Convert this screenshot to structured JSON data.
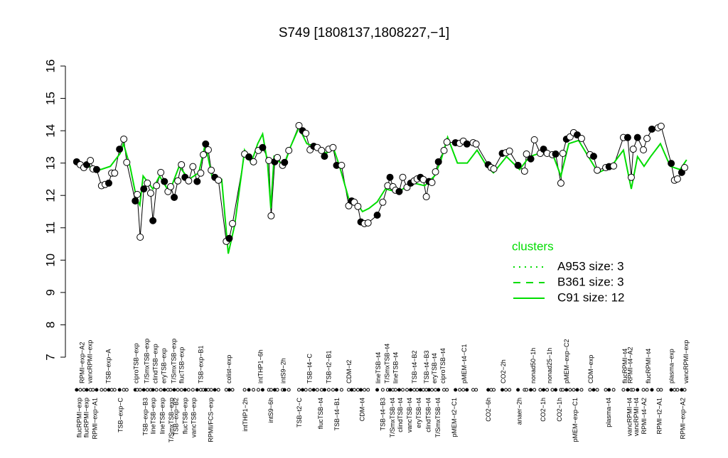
{
  "chart_data": {
    "type": "line",
    "title": "S749 [1808137,1808227,−1]",
    "xlim": [
      0,
      190
    ],
    "ylim": [
      7,
      16
    ],
    "yticks": [
      7,
      8,
      9,
      10,
      11,
      12,
      13,
      14,
      15,
      16
    ],
    "series": [
      {
        "color": "#000000",
        "x": [
          1.7,
          2.8,
          3.9,
          4.8,
          5.9,
          6.7,
          7.8,
          9.3,
          10.4,
          11.5,
          12.4,
          13.3,
          14.8,
          16.1,
          17,
          19.6,
          20.2,
          21.1,
          22.2,
          23.3,
          24.3,
          25,
          26.1,
          27.4,
          28.5,
          29.6,
          30.4,
          31.5,
          32.6,
          33.7,
          34.8,
          35.9,
          37.2,
          38.5,
          39.6,
          40.4,
          41.1,
          41.9,
          42.8,
          43.9,
          45,
          47.4,
          48.3,
          49.3,
          53,
          54.3,
          55.7,
          57.2,
          58.5,
          60.4,
          61.1,
          62.2,
          63,
          64.6,
          65.2,
          66.5,
          69.6,
          70.7,
          71.7,
          73,
          74.1,
          75.2,
          76.5,
          77.4,
          78.7,
          80,
          81.1,
          82.6,
          84.8,
          85.7,
          86.5,
          87.6,
          88.5,
          89.6,
          90.7,
          93.5,
          95.2,
          96.7,
          97.4,
          98.3,
          99.1,
          100.2,
          101.3,
          102.6,
          103.7,
          104.8,
          105.7,
          106.7,
          107.6,
          108.5,
          109.3,
          110.2,
          111.3,
          112.2,
          113.9,
          114.8,
          117.4,
          118.7,
          119.8,
          120.9,
          122.8,
          123.7,
          127.4,
          128.3,
          129.1,
          131.7,
          132.8,
          133.9,
          136.5,
          138.5,
          139.1,
          140.4,
          141.5,
          143.3,
          144.3,
          145.4,
          147,
          148,
          149.6,
          150.2,
          151.3,
          152.4,
          153.5,
          154.6,
          155.9,
          158.5,
          159.6,
          160.7,
          163.3,
          164.3,
          165.7,
          168.7,
          170,
          171.1,
          171.7,
          173,
          174.8,
          175.9,
          177.4,
          179.3,
          180.2,
          183.3,
          184.3,
          185.2,
          186.5,
          187.4
        ],
        "values": [
          13.04,
          12.95,
          12.86,
          12.95,
          13.08,
          12.82,
          12.8,
          12.3,
          12.34,
          12.38,
          12.69,
          12.69,
          13.43,
          13.74,
          13.02,
          11.83,
          12.03,
          10.71,
          12.2,
          12.38,
          12.07,
          11.22,
          12.3,
          12.71,
          12.43,
          12.12,
          12.27,
          11.94,
          12.45,
          12.95,
          12.56,
          12.45,
          12.89,
          12.43,
          12.69,
          13.26,
          13.59,
          13.41,
          12.78,
          12.56,
          12.47,
          10.58,
          10.67,
          11.13,
          13.28,
          13.19,
          13.04,
          13.39,
          13.48,
          13.08,
          11.37,
          13.04,
          13.17,
          12.93,
          13.02,
          13.39,
          14.16,
          14.0,
          13.92,
          13.41,
          13.52,
          13.48,
          13.39,
          13.21,
          13.43,
          13.48,
          12.93,
          12.93,
          11.68,
          11.83,
          11.79,
          11.66,
          11.18,
          11.13,
          11.15,
          11.39,
          11.79,
          12.3,
          12.56,
          12.27,
          12.16,
          12.12,
          12.56,
          12.25,
          12.38,
          12.45,
          12.51,
          12.56,
          12.49,
          11.96,
          12.43,
          12.4,
          12.73,
          13.04,
          13.39,
          13.65,
          13.63,
          13.61,
          13.68,
          13.59,
          13.63,
          13.59,
          12.95,
          12.86,
          12.82,
          13.3,
          13.32,
          13.37,
          12.93,
          12.75,
          13.28,
          13.13,
          13.72,
          13.3,
          13.43,
          13.3,
          13.26,
          13.28,
          12.38,
          13.3,
          13.74,
          13.81,
          13.94,
          13.87,
          13.76,
          13.26,
          13.21,
          12.78,
          12.86,
          12.89,
          12.91,
          13.79,
          13.79,
          12.56,
          13.43,
          13.79,
          13.41,
          13.76,
          14.05,
          14.09,
          14.14,
          12.99,
          12.47,
          12.51,
          12.71,
          12.86
        ]
      },
      {
        "color": "#00dd00",
        "x": [
          1.7,
          5,
          9,
          12,
          15,
          16,
          18,
          20,
          21,
          22,
          25,
          27,
          30,
          33,
          36,
          39,
          41,
          43,
          46,
          48,
          50,
          53,
          55,
          57,
          58.5,
          60,
          61,
          62,
          65,
          67,
          69.6,
          72,
          75,
          78,
          80,
          82,
          84.8,
          87,
          89,
          91,
          93.5,
          96,
          100,
          104,
          108,
          111,
          113,
          115,
          118,
          121,
          124,
          127,
          129,
          133,
          137,
          140,
          143,
          147,
          149.6,
          152,
          155,
          158,
          161,
          165,
          168.7,
          171.1,
          173,
          175,
          177,
          180,
          183,
          186,
          188
        ],
        "values": [
          13.0,
          12.9,
          12.8,
          12.9,
          13.3,
          13.6,
          12.9,
          11.9,
          11.7,
          12.6,
          12.2,
          12.6,
          12.1,
          12.9,
          12.5,
          12.7,
          13.6,
          12.6,
          12.5,
          10.2,
          11.1,
          13.4,
          13.0,
          13.6,
          13.9,
          13.0,
          11.6,
          13.2,
          12.9,
          13.5,
          14.1,
          13.6,
          13.5,
          13.3,
          13.5,
          12.9,
          11.9,
          11.8,
          11.5,
          11.6,
          11.8,
          12.2,
          12.1,
          12.4,
          12.3,
          12.6,
          13.1,
          13.8,
          13.0,
          13.0,
          13.4,
          12.9,
          12.7,
          13.2,
          12.8,
          13.2,
          13.3,
          13.3,
          12.6,
          13.6,
          13.7,
          13.2,
          12.7,
          12.9,
          13.4,
          12.2,
          13.2,
          12.9,
          13.2,
          13.6,
          12.9,
          12.8,
          13.1
        ]
      }
    ],
    "labels_top": {
      "x": [
        3.5,
        5.9,
        11.5,
        20,
        23.3,
        25.9,
        28.5,
        31.5,
        33.9,
        39.8,
        48.3,
        58,
        65,
        73,
        78.9,
        85,
        93.9,
        96.7,
        99.3,
        105,
        108.7,
        111.1,
        113.7,
        120.2,
        132.2,
        141.3,
        146.3,
        151.5,
        158.9,
        169.3,
        170.9,
        176.5,
        183.5,
        188
      ],
      "text": [
        "RPMI−exp−A2",
        "vancRPMI−exp",
        "TSB−exp−A",
        "ciproTSB−exp",
        "T/SmxTSB−exp",
        "clindTSB−exp",
        "eryTSB−exp",
        "T/SmxTSB−exp",
        "flucTSB−exp",
        "TSB−exp−B1",
        "colist−exp",
        "intTHP1−6h",
        "intS9−2h",
        "TSB−t4−C",
        "TSB−t2−B1",
        "CDM−t2",
        "lineTSB−t4",
        "T/SmxTSB−t4",
        "lineTSB−t4",
        "TSB−t4−B2",
        "TSB−t4−B3",
        "eryTSB−t4",
        "ciproTSB−t4",
        "pMEM−t4−C1",
        "CO2−2h",
        "nonad50−1h",
        "nonad25−1h",
        "pMEM−exp−C2",
        "CDM−exp",
        "flucRPMI−t4",
        "RPMI−t4−A2",
        "flucRPMI−t4",
        "plasma−exp",
        "vancRPMI−exp"
      ]
    },
    "labels_bottom": {
      "x": [
        2.6,
        4.8,
        7.4,
        15.2,
        22.8,
        25.2,
        28,
        30.7,
        32.2,
        35,
        37.6,
        42.8,
        53.3,
        61.1,
        69.8,
        76.3,
        81.3,
        89.1,
        95.4,
        98.3,
        100.7,
        103.5,
        106.3,
        109.3,
        112.2,
        117.2,
        127.6,
        137,
        144.3,
        149.3,
        154.1,
        164.3,
        170.7,
        172.8,
        175.2,
        179.8,
        187
      ],
      "text": [
        "flucRPMI−exp",
        "flucRPMI−exp",
        "RPMI−exp−A1",
        "TSB−exp−C",
        "TSB−exp−B3",
        "lineTSB−exp",
        "lineTSB−exp",
        "T/SmxTSB−exp",
        "TSB−exp−B2",
        "flucTSB−exp",
        "vancTSB−exp",
        "RPMI/FCS−exp",
        "intTHP1−2h",
        "intS9−6h",
        "TSB−t2−C",
        "flucTSB−t4",
        "TSB−t4−B1",
        "CDM−t4",
        "TSB−t4−B3",
        "T/SmxTSB−t4",
        "clindTSB−t4",
        "vancTSB−t4",
        "eryTSB−t4",
        "clindTSB−t4",
        "T/SmxTSB−t4",
        "pMEM−t2−C1",
        "CO2−6h",
        "anaer−2h",
        "CO2−1h",
        "CO2−1h",
        "pMEM−exp−C1",
        "plasma−t4",
        "vancRPMI−t4",
        "vancRPMI−t4",
        "RPMI−t4−A2",
        "RPMI−t2−A1",
        "RPMI−exp−A2"
      ]
    },
    "legend": {
      "title": "clusters",
      "color": "#00dd00",
      "entries": [
        {
          "label": "A953 size: 3",
          "dash": "dotted"
        },
        {
          "label": "B361 size: 3",
          "dash": "dashed"
        },
        {
          "label": "C91 size: 12",
          "dash": "solid"
        }
      ]
    }
  }
}
